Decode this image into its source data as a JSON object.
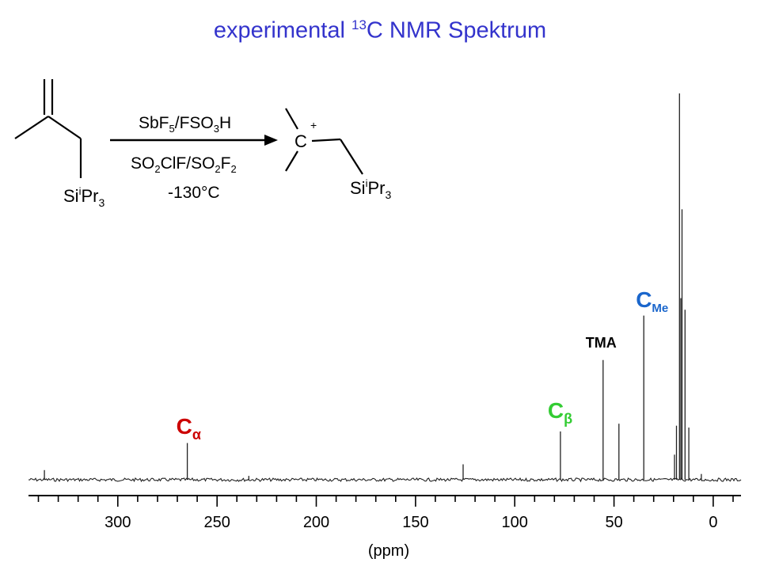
{
  "title": {
    "pre": "experimental ",
    "sup": "13",
    "post": "C NMR Spektrum",
    "color": "#3333cc"
  },
  "scheme": {
    "reactant_substituent": {
      "base": "Si",
      "sup": "i",
      "mid": "Pr",
      "sub": "3"
    },
    "product_substituent": {
      "base": "Si",
      "sup": "i",
      "mid": "Pr",
      "sub": "3"
    },
    "cation_atom": "C",
    "cation_charge": "+",
    "reagent_top": {
      "a": "SbF",
      "a_sub": "5",
      "b": "/FSO",
      "b_sub": "3",
      "c": "H"
    },
    "reagent_bottom": {
      "a": "SO",
      "a_sub": "2",
      "b": "ClF/SO",
      "b_sub": "2",
      "c": "F",
      "c_sub": "2"
    },
    "temperature": "-130°C"
  },
  "peak_labels": {
    "c_alpha": {
      "main": "C",
      "sub": "α",
      "color": "#cc0000"
    },
    "c_beta": {
      "main": "C",
      "sub": "β",
      "color": "#33cc33"
    },
    "tma": {
      "main": "TMA",
      "color": "#000000"
    },
    "c_me": {
      "main": "C",
      "sub": "Me",
      "color": "#1a66cc"
    }
  },
  "chart_data": {
    "type": "line",
    "axis_reversed": true,
    "xlabel": "(ppm)",
    "ylabel": "",
    "xlim": [
      345,
      -14
    ],
    "ylim": [
      0,
      1
    ],
    "x_ticks": [
      300,
      250,
      200,
      150,
      100,
      50,
      0
    ],
    "x_tick_labels": [
      "300",
      "250",
      "200",
      "150",
      "100",
      "50",
      "0"
    ],
    "minor_tick_step": 10,
    "grid": false,
    "peaks": [
      {
        "ppm": 337,
        "height": 0.025
      },
      {
        "ppm": 265,
        "height": 0.095
      },
      {
        "ppm": 234,
        "height": 0.01
      },
      {
        "ppm": 126,
        "height": 0.04
      },
      {
        "ppm": 77,
        "height": 0.125
      },
      {
        "ppm": 55.5,
        "height": 0.31
      },
      {
        "ppm": 47.5,
        "height": 0.145
      },
      {
        "ppm": 35,
        "height": 0.425
      },
      {
        "ppm": 19.5,
        "height": 0.065
      },
      {
        "ppm": 18.5,
        "height": 0.14
      },
      {
        "ppm": 17,
        "height": 1.0
      },
      {
        "ppm": 16.3,
        "height": 0.47
      },
      {
        "ppm": 15.7,
        "height": 0.7
      },
      {
        "ppm": 14.2,
        "height": 0.44
      },
      {
        "ppm": 12.3,
        "height": 0.135
      },
      {
        "ppm": 6,
        "height": 0.015
      }
    ]
  }
}
